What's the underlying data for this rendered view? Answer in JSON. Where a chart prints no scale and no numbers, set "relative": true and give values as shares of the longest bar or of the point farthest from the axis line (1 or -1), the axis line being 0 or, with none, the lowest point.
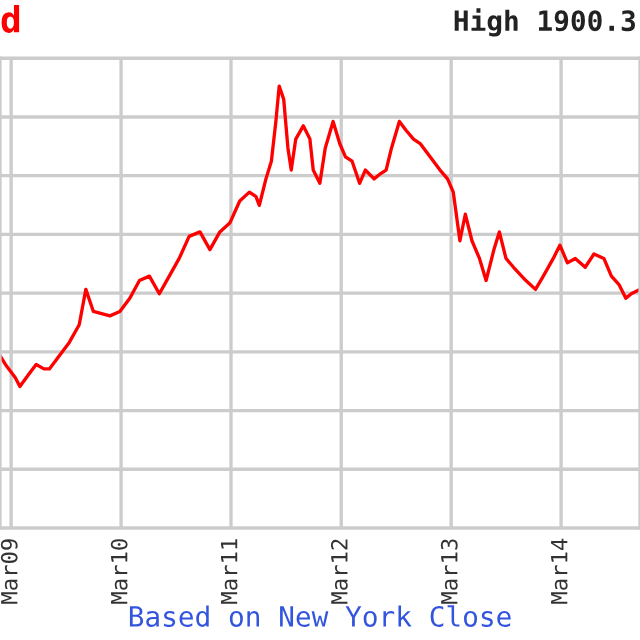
{
  "chart_data": {
    "type": "line",
    "title": "d",
    "annotations": [
      "High 1900.3",
      "Based on New York Close"
    ],
    "relative": true,
    "x": [
      "2009-01-23",
      "2009-02-10",
      "2009-03-15",
      "2009-03-30",
      "2009-05-01",
      "2009-05-23",
      "2009-06-18",
      "2009-07-06",
      "2009-08-08",
      "2009-09-10",
      "2009-10-13",
      "2009-11-04",
      "2009-11-29",
      "2010-01-23",
      "2010-02-25",
      "2010-03-30",
      "2010-05-01",
      "2010-06-03",
      "2010-07-06",
      "2010-08-08",
      "2010-09-10",
      "2010-10-13",
      "2010-11-18",
      "2010-12-21",
      "2011-01-23",
      "2011-02-25",
      "2011-03-30",
      "2011-05-01",
      "2011-05-23",
      "2011-06-03",
      "2011-06-25",
      "2011-07-13",
      "2011-07-28",
      "2011-08-08",
      "2011-08-23",
      "2011-09-06",
      "2011-09-17",
      "2011-10-02",
      "2011-10-27",
      "2011-11-18",
      "2011-11-29",
      "2011-12-21",
      "2012-01-08",
      "2012-02-03",
      "2012-02-25",
      "2012-03-15",
      "2012-04-06",
      "2012-05-01",
      "2012-05-20",
      "2012-06-18",
      "2012-07-06",
      "2012-07-28",
      "2012-08-15",
      "2012-09-10",
      "2012-10-02",
      "2012-10-27",
      "2012-11-18",
      "2012-12-21",
      "2013-01-23",
      "2013-02-17",
      "2013-03-08",
      "2013-03-30",
      "2013-04-17",
      "2013-05-09",
      "2013-06-03",
      "2013-06-25",
      "2013-07-21",
      "2013-08-08",
      "2013-08-30",
      "2013-09-24",
      "2013-11-04",
      "2013-12-06",
      "2014-01-01",
      "2014-02-03",
      "2014-02-25",
      "2014-03-22",
      "2014-04-17",
      "2014-05-20",
      "2014-06-18",
      "2014-07-21",
      "2014-08-15",
      "2014-09-10",
      "2014-10-02",
      "2014-10-20",
      "2014-11-18"
    ],
    "series": [
      {
        "color": "#ff0000",
        "values": [
          0.39,
          0.37,
          0.34,
          0.32,
          0.35,
          0.37,
          0.36,
          0.36,
          0.39,
          0.42,
          0.46,
          0.54,
          0.49,
          0.48,
          0.49,
          0.52,
          0.56,
          0.57,
          0.53,
          0.57,
          0.61,
          0.66,
          0.67,
          0.63,
          0.67,
          0.69,
          0.74,
          0.76,
          0.75,
          0.73,
          0.79,
          0.83,
          0.92,
          1,
          0.97,
          0.86,
          0.81,
          0.88,
          0.91,
          0.88,
          0.81,
          0.78,
          0.86,
          0.92,
          0.87,
          0.84,
          0.83,
          0.78,
          0.81,
          0.79,
          0.8,
          0.81,
          0.86,
          0.92,
          0.9,
          0.88,
          0.87,
          0.84,
          0.81,
          0.79,
          0.76,
          0.65,
          0.71,
          0.65,
          0.61,
          0.56,
          0.63,
          0.67,
          0.61,
          0.59,
          0.56,
          0.54,
          0.57,
          0.61,
          0.64,
          0.6,
          0.61,
          0.59,
          0.62,
          0.61,
          0.57,
          0.55,
          0.52,
          0.53,
          0.54
        ]
      }
    ],
    "xlim": [
      "2009-01-23",
      "2014-11-18"
    ],
    "xticks": [
      {
        "value": "2009-03-01",
        "label": "Mar09"
      },
      {
        "value": "2010-03-01",
        "label": "Mar10"
      },
      {
        "value": "2011-03-01",
        "label": "Mar11"
      },
      {
        "value": "2012-03-01",
        "label": "Mar12"
      },
      {
        "value": "2013-03-01",
        "label": "Mar13"
      },
      {
        "value": "2014-03-01",
        "label": "Mar14"
      }
    ],
    "tick_labels": "x",
    "grid": true,
    "legend": false,
    "marker": "none",
    "line_style": "solid"
  }
}
